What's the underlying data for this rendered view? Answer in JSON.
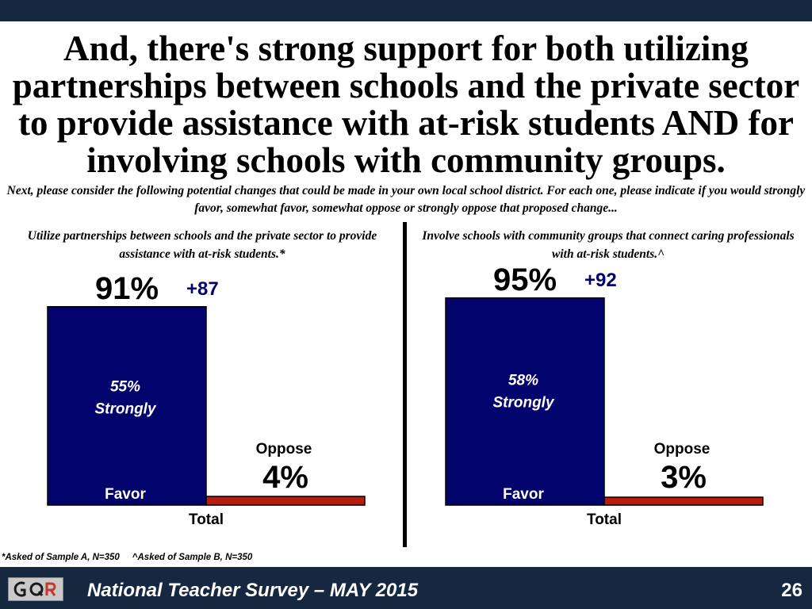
{
  "slide": {
    "title": "And, there's strong support for both utilizing partnerships between schools and the private sector to provide assistance with at-risk students AND for involving schools with community groups.",
    "question": "Next, please consider the following potential changes that could be made in your own local school district. For each one, please indicate if you would strongly favor, somewhat favor, somewhat oppose or strongly oppose that proposed change...",
    "footnote": "*Asked of Sample A, N=350     ^Asked of Sample B, N=350",
    "footer_title": "National Teacher Survey – MAY 2015",
    "page_number": "26",
    "logo_text": "GQR"
  },
  "colors": {
    "favor": "#03036e",
    "oppose": "#b81c0c",
    "net": "#03036e",
    "bar_bg": "#16283f"
  },
  "chart_data": [
    {
      "type": "bar",
      "title": "Utilize partnerships between schools and the private sector to provide assistance with at-risk students.*",
      "xlabel": "Total",
      "ylim": [
        0,
        100
      ],
      "categories": [
        "Favor",
        "Oppose"
      ],
      "values": [
        91,
        4
      ],
      "value_labels": [
        "91%",
        "4%"
      ],
      "strongly_value": 55,
      "strongly_labels": [
        "55%",
        "Strongly"
      ],
      "net_label": "+87"
    },
    {
      "type": "bar",
      "title": "Involve schools with community groups that connect caring professionals with at-risk students.^",
      "xlabel": "Total",
      "ylim": [
        0,
        100
      ],
      "categories": [
        "Favor",
        "Oppose"
      ],
      "values": [
        95,
        3
      ],
      "value_labels": [
        "95%",
        "3%"
      ],
      "strongly_value": 58,
      "strongly_labels": [
        "58%",
        "Strongly"
      ],
      "net_label": "+92"
    }
  ]
}
